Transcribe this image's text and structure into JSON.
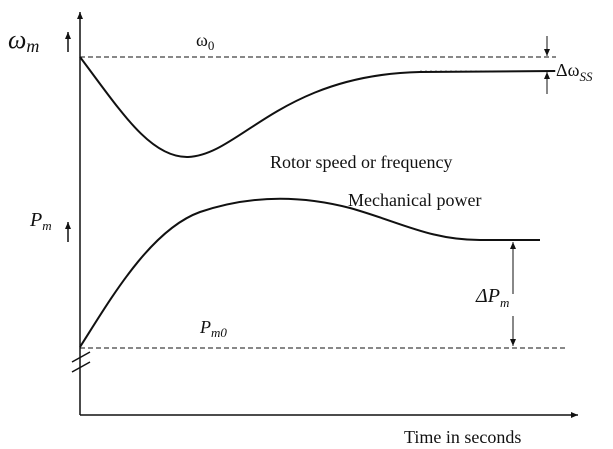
{
  "labels": {
    "omega_m": {
      "symbol": "ω",
      "sub": "m"
    },
    "omega_0": {
      "symbol": "ω",
      "sub": "0"
    },
    "delta_omega_ss": {
      "symbol": "Δω",
      "sub": "SS"
    },
    "rotor_curve": "Rotor speed or frequency",
    "power_curve": "Mechanical power",
    "p_m": {
      "symbol": "P",
      "sub": "m"
    },
    "p_m0": {
      "symbol": "P",
      "sub": "m0"
    },
    "delta_p_m": {
      "symbol": "ΔP",
      "sub": "m"
    },
    "x_axis": "Time in seconds"
  }
}
